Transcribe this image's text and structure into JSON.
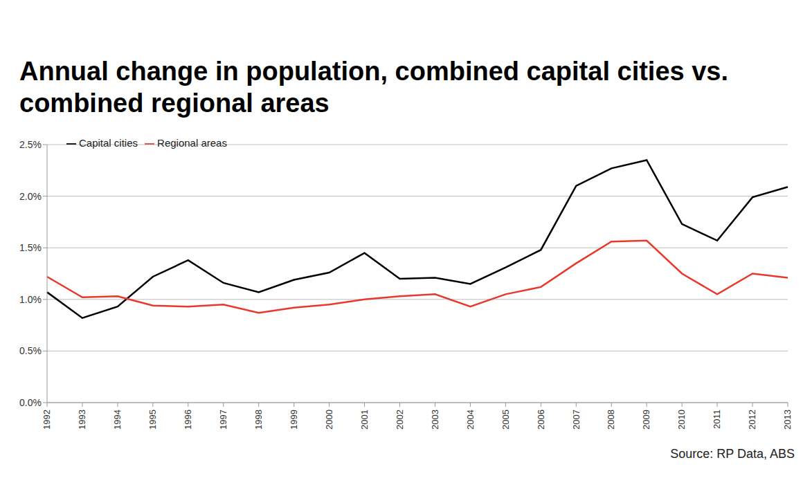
{
  "chart_data": {
    "type": "line",
    "title": "Annual change in population, combined capital cities vs. combined regional areas",
    "source": "Source: RP Data, ABS",
    "categories": [
      "1992",
      "1993",
      "1994",
      "1995",
      "1996",
      "1997",
      "1998",
      "1999",
      "2000",
      "2001",
      "2002",
      "2003",
      "2004",
      "2005",
      "2006",
      "2007",
      "2008",
      "2009",
      "2010",
      "2011",
      "2012",
      "2013"
    ],
    "series": [
      {
        "name": "Capital cities",
        "color": "#000000",
        "values": [
          1.07,
          0.82,
          0.93,
          1.22,
          1.38,
          1.16,
          1.07,
          1.19,
          1.26,
          1.45,
          1.2,
          1.21,
          1.15,
          1.31,
          1.48,
          2.1,
          2.27,
          2.35,
          1.73,
          1.57,
          1.99,
          2.09
        ]
      },
      {
        "name": "Regional areas",
        "color": "#e8382b",
        "values": [
          1.22,
          1.02,
          1.03,
          0.94,
          0.93,
          0.95,
          0.87,
          0.92,
          0.95,
          1.0,
          1.03,
          1.05,
          0.93,
          1.05,
          1.12,
          1.35,
          1.56,
          1.57,
          1.25,
          1.05,
          1.25,
          1.21
        ]
      }
    ],
    "ylim": [
      0,
      2.5
    ],
    "yticks": [
      {
        "value": 0,
        "label": "0.0%"
      },
      {
        "value": 0.5,
        "label": "0.5%"
      },
      {
        "value": 1,
        "label": "1.0%"
      },
      {
        "value": 1.5,
        "label": "1.5%"
      },
      {
        "value": 2,
        "label": "2.0%"
      },
      {
        "value": 2.5,
        "label": "2.5%"
      }
    ],
    "grid": true,
    "legend": "upper left"
  }
}
